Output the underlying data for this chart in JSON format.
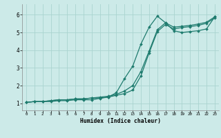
{
  "bg_color": "#cceae8",
  "grid_color": "#aad4d0",
  "line_color": "#1e7b6e",
  "xlabel": "Humidex (Indice chaleur)",
  "xlim": [
    -0.5,
    23.5
  ],
  "ylim": [
    0.6,
    6.6
  ],
  "xticks": [
    0,
    1,
    2,
    3,
    4,
    5,
    6,
    7,
    8,
    9,
    10,
    11,
    12,
    13,
    14,
    15,
    16,
    17,
    18,
    19,
    20,
    21,
    22,
    23
  ],
  "yticks": [
    1,
    2,
    3,
    4,
    5,
    6
  ],
  "line1_x": [
    0,
    1,
    2,
    3,
    4,
    5,
    6,
    7,
    8,
    9,
    10,
    11,
    12,
    13,
    14,
    15,
    16,
    17,
    18,
    19,
    20,
    21,
    22,
    23
  ],
  "line1_y": [
    1.05,
    1.1,
    1.1,
    1.15,
    1.2,
    1.2,
    1.25,
    1.25,
    1.3,
    1.3,
    1.35,
    1.6,
    2.4,
    3.1,
    4.35,
    5.3,
    5.92,
    5.55,
    5.1,
    5.0,
    5.05,
    5.1,
    5.2,
    5.88
  ],
  "line2_x": [
    0,
    1,
    2,
    3,
    4,
    5,
    6,
    7,
    8,
    9,
    10,
    11,
    12,
    13,
    14,
    15,
    16,
    17,
    18,
    19,
    20,
    21,
    22,
    23
  ],
  "line2_y": [
    1.05,
    1.1,
    1.1,
    1.15,
    1.2,
    1.2,
    1.25,
    1.25,
    1.3,
    1.35,
    1.4,
    1.5,
    1.7,
    2.0,
    2.8,
    3.95,
    5.15,
    5.55,
    5.3,
    5.35,
    5.4,
    5.48,
    5.58,
    5.88
  ],
  "line3_x": [
    0,
    1,
    2,
    3,
    4,
    5,
    6,
    7,
    8,
    9,
    10,
    11,
    12,
    13,
    14,
    15,
    16,
    17,
    18,
    19,
    20,
    21,
    22,
    23
  ],
  "line3_y": [
    1.05,
    1.1,
    1.1,
    1.1,
    1.15,
    1.15,
    1.2,
    1.2,
    1.2,
    1.28,
    1.35,
    1.45,
    1.55,
    1.75,
    2.55,
    3.85,
    5.05,
    5.45,
    5.2,
    5.28,
    5.33,
    5.4,
    5.52,
    5.82
  ]
}
